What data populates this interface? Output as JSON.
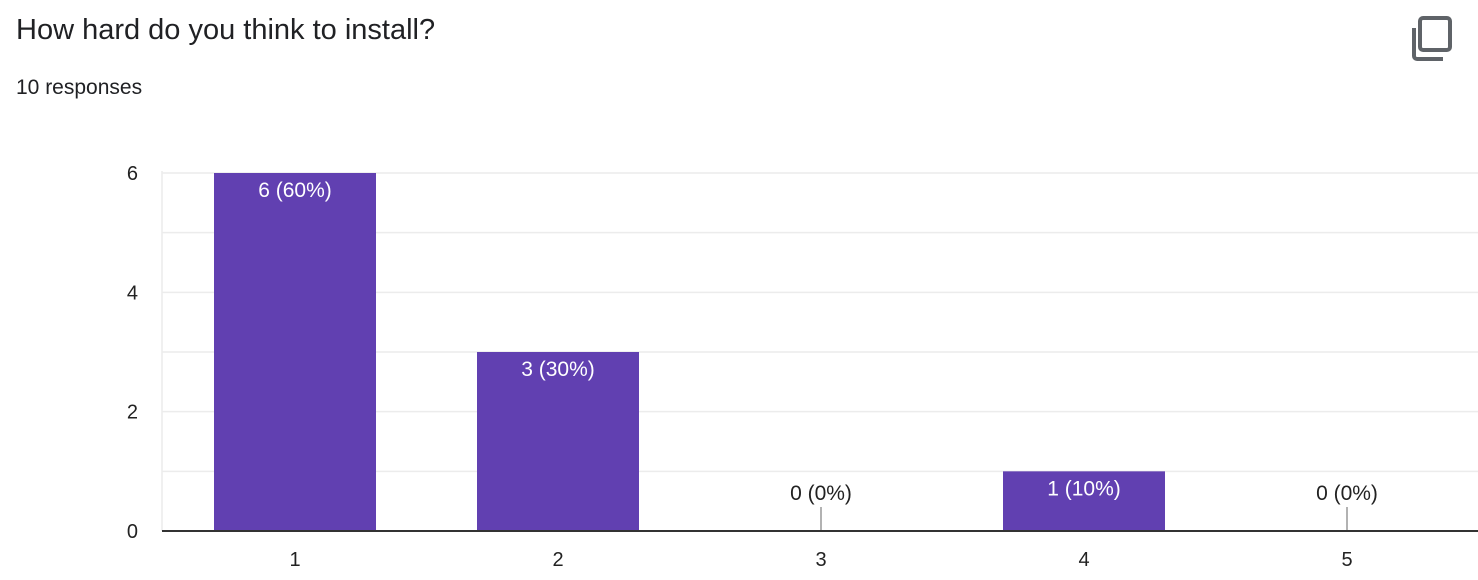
{
  "card": {
    "title": "How hard do you think to install?",
    "subtitle": "10 responses",
    "copy_icon": "copy-icon"
  },
  "colors": {
    "bar": "#6140b1",
    "gridline": "#ececec",
    "axis": "#333333",
    "label_inside": "#ffffff",
    "label_outside": "#222222"
  },
  "chart_data": {
    "type": "bar",
    "title": "",
    "xlabel": "",
    "ylabel": "",
    "categories": [
      "1",
      "2",
      "3",
      "4",
      "5"
    ],
    "values": [
      6,
      3,
      0,
      1,
      0
    ],
    "data_labels": [
      "6 (60%)",
      "3 (30%)",
      "0 (0%)",
      "1 (10%)",
      "0 (0%)"
    ],
    "ylim": [
      0,
      6
    ],
    "yticks": [
      0,
      2,
      4,
      6
    ],
    "ytick_labels": [
      "0",
      "2",
      "4",
      "6"
    ],
    "grid": true,
    "legend": "none"
  }
}
